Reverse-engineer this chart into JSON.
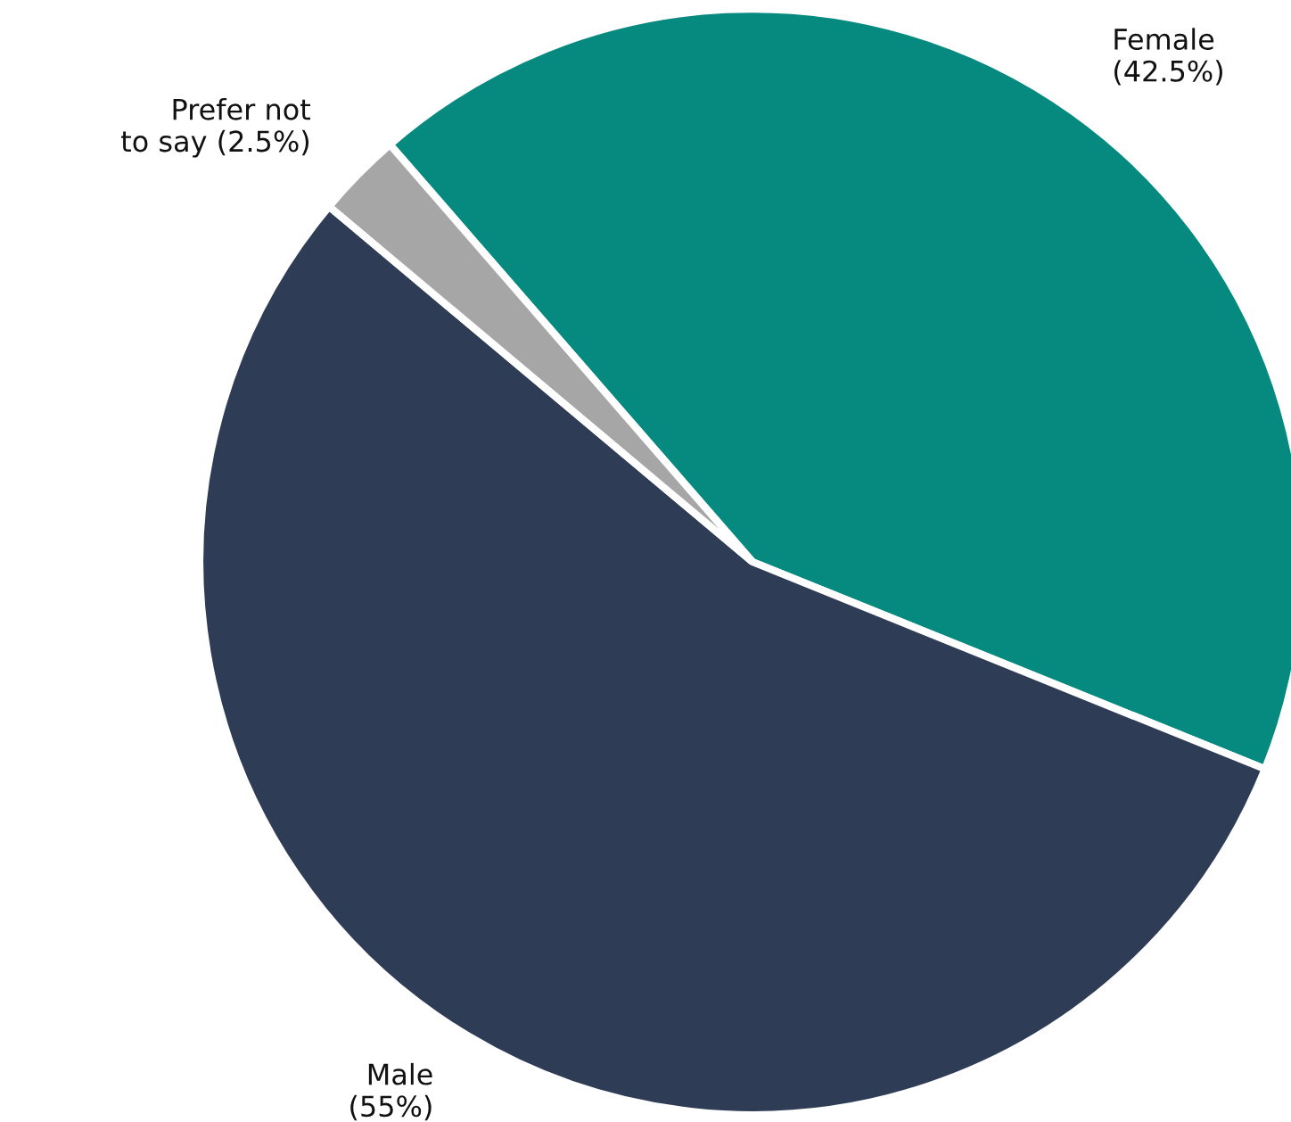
{
  "chart_data": {
    "type": "pie",
    "categories": [
      "Female",
      "Male",
      "Prefer not\nto say"
    ],
    "values": [
      42.5,
      55,
      2.5
    ],
    "value_labels": [
      "(42.5%)",
      "(55%)",
      "(2.5%)"
    ],
    "colors": [
      "#068a7f",
      "#2e3d55",
      "#a6a6a6"
    ]
  }
}
